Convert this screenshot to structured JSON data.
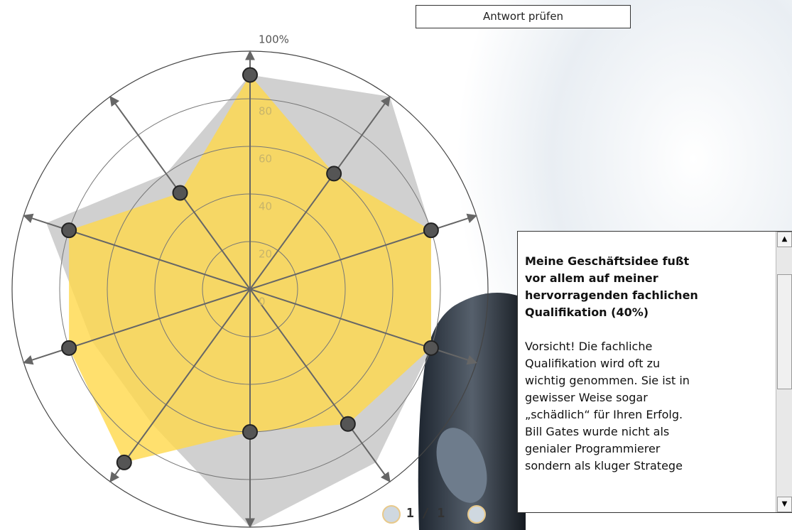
{
  "button": {
    "label": "Antwort prüfen"
  },
  "chart_data": {
    "type": "radar",
    "ylim": [
      0,
      100
    ],
    "yticks": [
      0,
      20,
      40,
      60,
      80,
      {
        "value": 100,
        "label": "100%"
      }
    ],
    "series": [
      {
        "color": "#c8c8c8",
        "values": [
          90,
          100,
          80,
          80,
          90,
          100,
          70,
          70,
          90,
          60
        ]
      },
      {
        "color": "#ffd84a",
        "values": [
          90,
          60,
          80,
          80,
          70,
          60,
          90,
          80,
          80,
          50
        ]
      }
    ]
  },
  "pager": {
    "label": "1 / 1"
  },
  "panel": {
    "title_lines": [
      "Meine Geschäftsidee fußt",
      "vor allem auf meiner",
      "hervorragenden fachlichen",
      "Qualifikation (40%)"
    ],
    "body_lines": [
      "Vorsicht! Die fachliche",
      "Qualifikation wird oft zu",
      "wichtig genommen. Sie ist in",
      "gewisser Weise sogar",
      "„schädlich“ für Ihren Erfolg.",
      "Bill Gates wurde nicht als",
      "genialer Programmierer",
      "sondern als kluger Stratege"
    ]
  }
}
